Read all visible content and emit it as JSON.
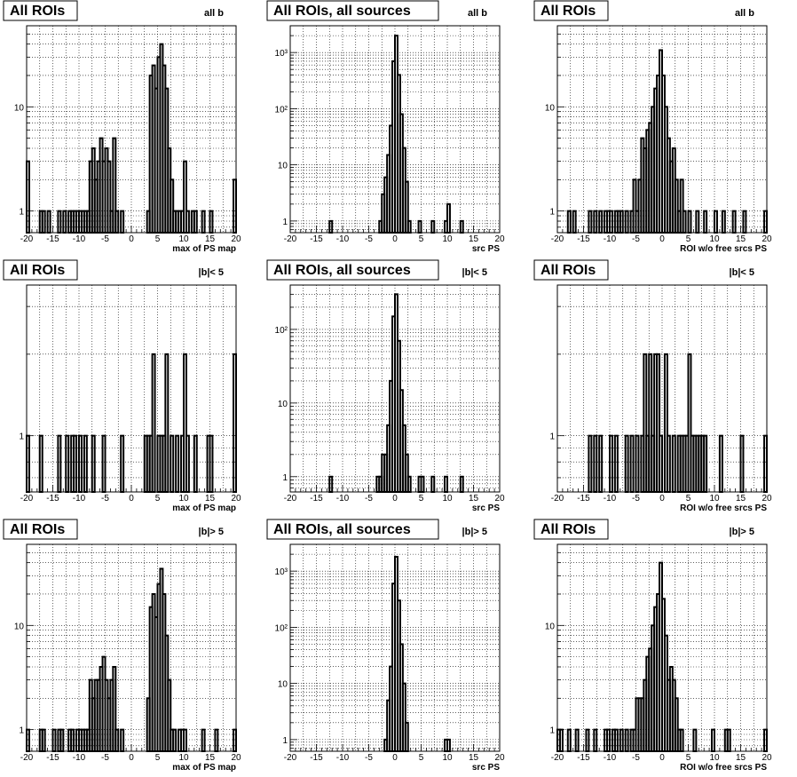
{
  "figure": {
    "background": "#ffffff",
    "ink": "#000000",
    "grid_color": "#000000"
  },
  "chart_data": [
    {
      "id": "p1",
      "type": "bar",
      "title": "All ROIs",
      "cut_label": "all b",
      "xlabel": "max of PS map",
      "xlim": [
        -20,
        20
      ],
      "ylim": [
        0.62,
        60
      ],
      "yscale": "log",
      "grid": true,
      "bin_width": 0.5,
      "x_ticks": [
        "-20",
        "-15",
        "-10",
        "-5",
        "0",
        "5",
        "10",
        "15",
        "20"
      ],
      "y_tick_labels": [
        {
          "value": 1,
          "label": "1"
        },
        {
          "value": 10,
          "label": "10"
        }
      ],
      "counts": [
        [
          -20,
          3
        ],
        [
          -17.5,
          1
        ],
        [
          -17,
          1
        ],
        [
          -16,
          1
        ],
        [
          -14,
          1
        ],
        [
          -13,
          1
        ],
        [
          -12,
          1
        ],
        [
          -11.5,
          1
        ],
        [
          -11,
          1
        ],
        [
          -10.5,
          1
        ],
        [
          -10,
          1
        ],
        [
          -9.5,
          1
        ],
        [
          -9,
          1
        ],
        [
          -8.5,
          1
        ],
        [
          -8,
          3
        ],
        [
          -7.5,
          4
        ],
        [
          -7,
          2
        ],
        [
          -6.5,
          3
        ],
        [
          -6,
          5
        ],
        [
          -5.5,
          3
        ],
        [
          -5,
          4
        ],
        [
          -4.5,
          3
        ],
        [
          -4,
          1
        ],
        [
          -3.5,
          5
        ],
        [
          -3,
          1
        ],
        [
          -2,
          1
        ],
        [
          3,
          1
        ],
        [
          3.5,
          20
        ],
        [
          4,
          25
        ],
        [
          4.5,
          15
        ],
        [
          5,
          30
        ],
        [
          5.5,
          40
        ],
        [
          6,
          25
        ],
        [
          6.5,
          15
        ],
        [
          7,
          4
        ],
        [
          7.5,
          2
        ],
        [
          8,
          1
        ],
        [
          8.5,
          1
        ],
        [
          9,
          1
        ],
        [
          9.5,
          1
        ],
        [
          10,
          3
        ],
        [
          10.5,
          1
        ],
        [
          11.5,
          1
        ],
        [
          12,
          1
        ],
        [
          13.5,
          1
        ],
        [
          15,
          1
        ],
        [
          19.5,
          2
        ]
      ]
    },
    {
      "id": "p2",
      "type": "bar",
      "title": "All ROIs, all sources",
      "cut_label": "all b",
      "xlabel": "src PS",
      "xlim": [
        -20,
        20
      ],
      "ylim": [
        0.62,
        3000
      ],
      "yscale": "log",
      "grid": true,
      "bin_width": 0.5,
      "x_ticks": [
        "-20",
        "-15",
        "-10",
        "-5",
        "0",
        "5",
        "10",
        "15",
        "20"
      ],
      "y_tick_labels": [
        {
          "value": 1,
          "label": "1"
        },
        {
          "value": 10,
          "label": "10"
        },
        {
          "value": 100,
          "label": "10²"
        },
        {
          "value": 1000,
          "label": "10³"
        }
      ],
      "counts": [
        [
          -12.5,
          1
        ],
        [
          -3,
          1
        ],
        [
          -2.5,
          3
        ],
        [
          -2,
          6
        ],
        [
          -1.5,
          15
        ],
        [
          -1,
          50
        ],
        [
          -0.5,
          700
        ],
        [
          0,
          2000
        ],
        [
          0.5,
          400
        ],
        [
          1,
          80
        ],
        [
          1.5,
          20
        ],
        [
          2,
          5
        ],
        [
          2.5,
          1
        ],
        [
          4.5,
          1
        ],
        [
          7,
          1
        ],
        [
          9.5,
          1
        ],
        [
          10,
          2
        ],
        [
          12.5,
          1
        ]
      ]
    },
    {
      "id": "p3",
      "type": "bar",
      "title": "All ROIs",
      "cut_label": "all b",
      "xlabel": "ROI w/o free srcs PS",
      "xlim": [
        -20,
        20
      ],
      "ylim": [
        0.62,
        60
      ],
      "yscale": "log",
      "grid": true,
      "bin_width": 0.5,
      "x_ticks": [
        "-20",
        "-15",
        "-10",
        "-5",
        "0",
        "5",
        "10",
        "15",
        "20"
      ],
      "y_tick_labels": [
        {
          "value": 1,
          "label": "1"
        },
        {
          "value": 10,
          "label": "10"
        }
      ],
      "counts": [
        [
          -18,
          1
        ],
        [
          -17,
          1
        ],
        [
          -14,
          1
        ],
        [
          -13,
          1
        ],
        [
          -12,
          1
        ],
        [
          -11,
          1
        ],
        [
          -10.5,
          1
        ],
        [
          -10,
          1
        ],
        [
          -9,
          1
        ],
        [
          -8.5,
          1
        ],
        [
          -8,
          1
        ],
        [
          -7,
          1
        ],
        [
          -6,
          1
        ],
        [
          -5.5,
          2
        ],
        [
          -5,
          1
        ],
        [
          -4.5,
          2
        ],
        [
          -4,
          5
        ],
        [
          -3.5,
          4
        ],
        [
          -3,
          6
        ],
        [
          -2.5,
          7
        ],
        [
          -2,
          10
        ],
        [
          -1.5,
          15
        ],
        [
          -1,
          20
        ],
        [
          -0.5,
          35
        ],
        [
          0,
          20
        ],
        [
          0.5,
          10
        ],
        [
          1,
          5
        ],
        [
          1.5,
          3
        ],
        [
          2,
          4
        ],
        [
          2.5,
          2
        ],
        [
          3,
          1
        ],
        [
          3.5,
          2
        ],
        [
          4,
          1
        ],
        [
          5,
          1
        ],
        [
          6.5,
          1
        ],
        [
          8,
          1
        ],
        [
          10,
          1
        ],
        [
          11.5,
          1
        ],
        [
          13.5,
          1
        ],
        [
          15.5,
          1
        ],
        [
          19.5,
          1
        ]
      ]
    },
    {
      "id": "p4",
      "type": "bar",
      "title": "All ROIs",
      "cut_label": "|b|< 5",
      "xlabel": "max of PS map",
      "xlim": [
        -20,
        20
      ],
      "ylim": [
        0.62,
        3.6
      ],
      "yscale": "log",
      "grid": true,
      "bin_width": 0.5,
      "x_ticks": [
        "-20",
        "-15",
        "-10",
        "-5",
        "0",
        "5",
        "10",
        "15",
        "20"
      ],
      "y_tick_labels": [
        {
          "value": 1,
          "label": "1"
        }
      ],
      "counts": [
        [
          -20,
          1
        ],
        [
          -17.5,
          1
        ],
        [
          -14,
          1
        ],
        [
          -12.5,
          1
        ],
        [
          -11.5,
          1
        ],
        [
          -11,
          1
        ],
        [
          -10,
          1
        ],
        [
          -9,
          1
        ],
        [
          -7.5,
          1
        ],
        [
          -5.5,
          1
        ],
        [
          -2,
          1
        ],
        [
          2.5,
          1
        ],
        [
          3,
          1
        ],
        [
          3.5,
          1
        ],
        [
          4,
          2
        ],
        [
          5,
          1
        ],
        [
          5.5,
          1
        ],
        [
          6,
          1
        ],
        [
          6.5,
          2
        ],
        [
          7.5,
          1
        ],
        [
          8.5,
          1
        ],
        [
          9.5,
          1
        ],
        [
          10,
          2
        ],
        [
          10.5,
          1
        ],
        [
          12,
          1
        ],
        [
          14.5,
          1
        ],
        [
          15,
          1
        ],
        [
          19.5,
          2
        ]
      ]
    },
    {
      "id": "p5",
      "type": "bar",
      "title": "All ROIs, all sources",
      "cut_label": "|b|< 5",
      "xlabel": "src PS",
      "xlim": [
        -20,
        20
      ],
      "ylim": [
        0.62,
        400
      ],
      "yscale": "log",
      "grid": true,
      "bin_width": 0.5,
      "x_ticks": [
        "-20",
        "-15",
        "-10",
        "-5",
        "0",
        "5",
        "10",
        "15",
        "20"
      ],
      "y_tick_labels": [
        {
          "value": 1,
          "label": "1"
        },
        {
          "value": 10,
          "label": "10"
        },
        {
          "value": 100,
          "label": "10²"
        }
      ],
      "counts": [
        [
          -12.5,
          1
        ],
        [
          -3.5,
          1
        ],
        [
          -3,
          1
        ],
        [
          -2.5,
          2
        ],
        [
          -2,
          2
        ],
        [
          -1.5,
          5
        ],
        [
          -1,
          20
        ],
        [
          -0.5,
          150
        ],
        [
          0,
          300
        ],
        [
          0.5,
          70
        ],
        [
          1,
          15
        ],
        [
          1.5,
          5
        ],
        [
          2,
          2
        ],
        [
          2.5,
          1
        ],
        [
          4.5,
          1
        ],
        [
          5,
          1
        ],
        [
          7,
          1
        ],
        [
          9.5,
          1
        ],
        [
          12.5,
          1
        ]
      ]
    },
    {
      "id": "p6",
      "type": "bar",
      "title": "All ROIs",
      "cut_label": "|b|< 5",
      "xlabel": "ROI w/o free srcs PS",
      "xlim": [
        -20,
        20
      ],
      "ylim": [
        0.62,
        3.6
      ],
      "yscale": "log",
      "grid": true,
      "bin_width": 0.5,
      "x_ticks": [
        "-20",
        "-15",
        "-10",
        "-5",
        "0",
        "5",
        "10",
        "15",
        "20"
      ],
      "y_tick_labels": [
        {
          "value": 1,
          "label": "1"
        }
      ],
      "counts": [
        [
          -14,
          1
        ],
        [
          -13,
          1
        ],
        [
          -12,
          1
        ],
        [
          -10,
          1
        ],
        [
          -9,
          1
        ],
        [
          -7,
          1
        ],
        [
          -6,
          1
        ],
        [
          -5,
          1
        ],
        [
          -4,
          1
        ],
        [
          -3.5,
          2
        ],
        [
          -3,
          1
        ],
        [
          -2.5,
          2
        ],
        [
          -2,
          1
        ],
        [
          -1.5,
          2
        ],
        [
          -1,
          2
        ],
        [
          -0.5,
          1
        ],
        [
          0.5,
          2
        ],
        [
          1,
          1
        ],
        [
          2,
          1
        ],
        [
          3,
          1
        ],
        [
          3.5,
          1
        ],
        [
          4,
          1
        ],
        [
          4.5,
          1
        ],
        [
          5,
          2
        ],
        [
          5.5,
          1
        ],
        [
          6,
          1
        ],
        [
          6.5,
          1
        ],
        [
          7,
          1
        ],
        [
          7.5,
          1
        ],
        [
          8,
          1
        ],
        [
          11,
          1
        ],
        [
          15,
          1
        ],
        [
          19.5,
          1
        ]
      ]
    },
    {
      "id": "p7",
      "type": "bar",
      "title": "All ROIs",
      "cut_label": "|b|> 5",
      "xlabel": "max of PS map",
      "xlim": [
        -20,
        20
      ],
      "ylim": [
        0.62,
        60
      ],
      "yscale": "log",
      "grid": true,
      "bin_width": 0.5,
      "x_ticks": [
        "-20",
        "-15",
        "-10",
        "-5",
        "0",
        "5",
        "10",
        "15",
        "20"
      ],
      "y_tick_labels": [
        {
          "value": 1,
          "label": "1"
        },
        {
          "value": 10,
          "label": "10"
        }
      ],
      "counts": [
        [
          -20,
          1
        ],
        [
          -17.5,
          1
        ],
        [
          -17,
          1
        ],
        [
          -15,
          1
        ],
        [
          -14,
          1
        ],
        [
          -13.5,
          1
        ],
        [
          -12,
          1
        ],
        [
          -11.5,
          1
        ],
        [
          -10.5,
          1
        ],
        [
          -10,
          1
        ],
        [
          -9.5,
          1
        ],
        [
          -9,
          1
        ],
        [
          -8.5,
          1
        ],
        [
          -8,
          3
        ],
        [
          -7.5,
          2
        ],
        [
          -7,
          3
        ],
        [
          -6.5,
          3
        ],
        [
          -6,
          4
        ],
        [
          -5.5,
          5
        ],
        [
          -5,
          3
        ],
        [
          -4.5,
          2
        ],
        [
          -4,
          3
        ],
        [
          -3.5,
          4
        ],
        [
          -3,
          1
        ],
        [
          -2,
          1
        ],
        [
          3,
          2
        ],
        [
          3.5,
          15
        ],
        [
          4,
          20
        ],
        [
          4.5,
          12
        ],
        [
          5,
          25
        ],
        [
          5.5,
          35
        ],
        [
          6,
          20
        ],
        [
          6.5,
          8
        ],
        [
          7,
          3
        ],
        [
          7.5,
          1
        ],
        [
          8,
          1
        ],
        [
          9,
          1
        ],
        [
          9.5,
          1
        ],
        [
          10,
          1
        ],
        [
          13.5,
          1
        ],
        [
          16,
          1
        ],
        [
          19.5,
          1
        ]
      ]
    },
    {
      "id": "p8",
      "type": "bar",
      "title": "All ROIs, all sources",
      "cut_label": "|b|> 5",
      "xlabel": "src PS",
      "xlim": [
        -20,
        20
      ],
      "ylim": [
        0.62,
        3000
      ],
      "yscale": "log",
      "grid": true,
      "bin_width": 0.5,
      "x_ticks": [
        "-20",
        "-15",
        "-10",
        "-5",
        "0",
        "5",
        "10",
        "15",
        "20"
      ],
      "y_tick_labels": [
        {
          "value": 1,
          "label": "1"
        },
        {
          "value": 10,
          "label": "10"
        },
        {
          "value": 100,
          "label": "10²"
        },
        {
          "value": 1000,
          "label": "10³"
        }
      ],
      "counts": [
        [
          -2,
          1
        ],
        [
          -1.5,
          5
        ],
        [
          -1,
          20
        ],
        [
          -0.5,
          600
        ],
        [
          0,
          1800
        ],
        [
          0.5,
          300
        ],
        [
          1,
          50
        ],
        [
          1.5,
          10
        ],
        [
          2,
          2
        ],
        [
          9.5,
          1
        ],
        [
          10,
          1
        ]
      ]
    },
    {
      "id": "p9",
      "type": "bar",
      "title": "All ROIs",
      "cut_label": "|b|> 5",
      "xlabel": "ROI w/o free srcs PS",
      "xlim": [
        -20,
        20
      ],
      "ylim": [
        0.62,
        60
      ],
      "yscale": "log",
      "grid": true,
      "bin_width": 0.5,
      "x_ticks": [
        "-20",
        "-15",
        "-10",
        "-5",
        "0",
        "5",
        "10",
        "15",
        "20"
      ],
      "y_tick_labels": [
        {
          "value": 1,
          "label": "1"
        },
        {
          "value": 10,
          "label": "10"
        }
      ],
      "counts": [
        [
          -20,
          1
        ],
        [
          -19.5,
          1
        ],
        [
          -18,
          1
        ],
        [
          -16.5,
          1
        ],
        [
          -14.5,
          1
        ],
        [
          -13,
          1
        ],
        [
          -11,
          1
        ],
        [
          -10.5,
          1
        ],
        [
          -9.5,
          1
        ],
        [
          -9,
          1
        ],
        [
          -8,
          1
        ],
        [
          -7,
          1
        ],
        [
          -6,
          1
        ],
        [
          -5.5,
          1
        ],
        [
          -5,
          2
        ],
        [
          -4.5,
          2
        ],
        [
          -4,
          2
        ],
        [
          -3.5,
          3
        ],
        [
          -3,
          5
        ],
        [
          -2.5,
          6
        ],
        [
          -2,
          10
        ],
        [
          -1.5,
          15
        ],
        [
          -1,
          20
        ],
        [
          -0.5,
          40
        ],
        [
          0,
          18
        ],
        [
          0.5,
          8
        ],
        [
          1,
          3
        ],
        [
          1.5,
          4
        ],
        [
          2,
          3
        ],
        [
          2.5,
          2
        ],
        [
          3,
          1
        ],
        [
          3.5,
          1
        ],
        [
          6,
          1
        ],
        [
          9.5,
          1
        ],
        [
          12,
          1
        ],
        [
          12.5,
          1
        ],
        [
          19.5,
          1
        ]
      ]
    }
  ]
}
